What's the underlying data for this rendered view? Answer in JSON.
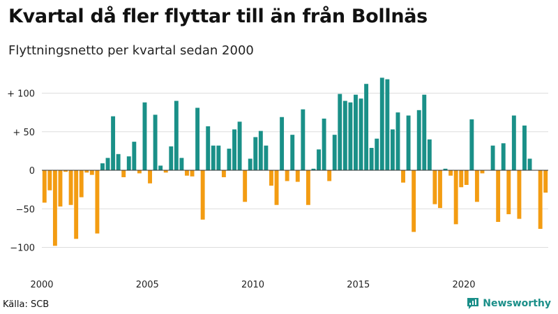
{
  "title": "Kvartal då fler flyttar till än från Bollnäs",
  "subtitle": "Flyttningsnetto per kvartal sedan 2000",
  "source": "Källa: SCB",
  "brand": "Newsworthy",
  "colors": {
    "positive": "#1a9088",
    "negative": "#f39c12",
    "grid": "#dddddd",
    "zero": "#333333"
  },
  "chart_data": {
    "type": "bar",
    "title": "Kvartal då fler flyttar till än från Bollnäs",
    "subtitle": "Flyttningsnetto per kvartal sedan 2000",
    "xlabel": "",
    "ylabel": "",
    "ylim": [
      -110,
      120
    ],
    "yticks": [
      100,
      50,
      0,
      -50,
      -100
    ],
    "ytick_labels": [
      "+ 100",
      "+  50",
      "0",
      "−50",
      "−100"
    ],
    "xticks": [
      "2000",
      "2005",
      "2010",
      "2015",
      "2020"
    ],
    "grid": true,
    "legend": "none",
    "start": "2000 Q1",
    "values": [
      -42,
      -26,
      -98,
      -47,
      -2,
      -45,
      -89,
      -35,
      -3,
      -6,
      -82,
      9,
      16,
      70,
      21,
      -9,
      18,
      37,
      -4,
      88,
      -17,
      72,
      6,
      -3,
      31,
      90,
      16,
      -7,
      -8,
      81,
      -64,
      57,
      32,
      32,
      -9,
      28,
      53,
      63,
      -41,
      15,
      43,
      51,
      32,
      -20,
      -45,
      69,
      -14,
      46,
      -15,
      79,
      -45,
      2,
      27,
      67,
      -14,
      46,
      99,
      90,
      88,
      98,
      93,
      112,
      29,
      41,
      120,
      118,
      53,
      75,
      -16,
      71,
      -80,
      78,
      98,
      40,
      -44,
      -49,
      2,
      -7,
      -70,
      -22,
      -19,
      66,
      -41,
      -4,
      0,
      32,
      -67,
      35,
      -57,
      71,
      -63,
      58,
      15,
      0,
      -76,
      -29
    ]
  }
}
